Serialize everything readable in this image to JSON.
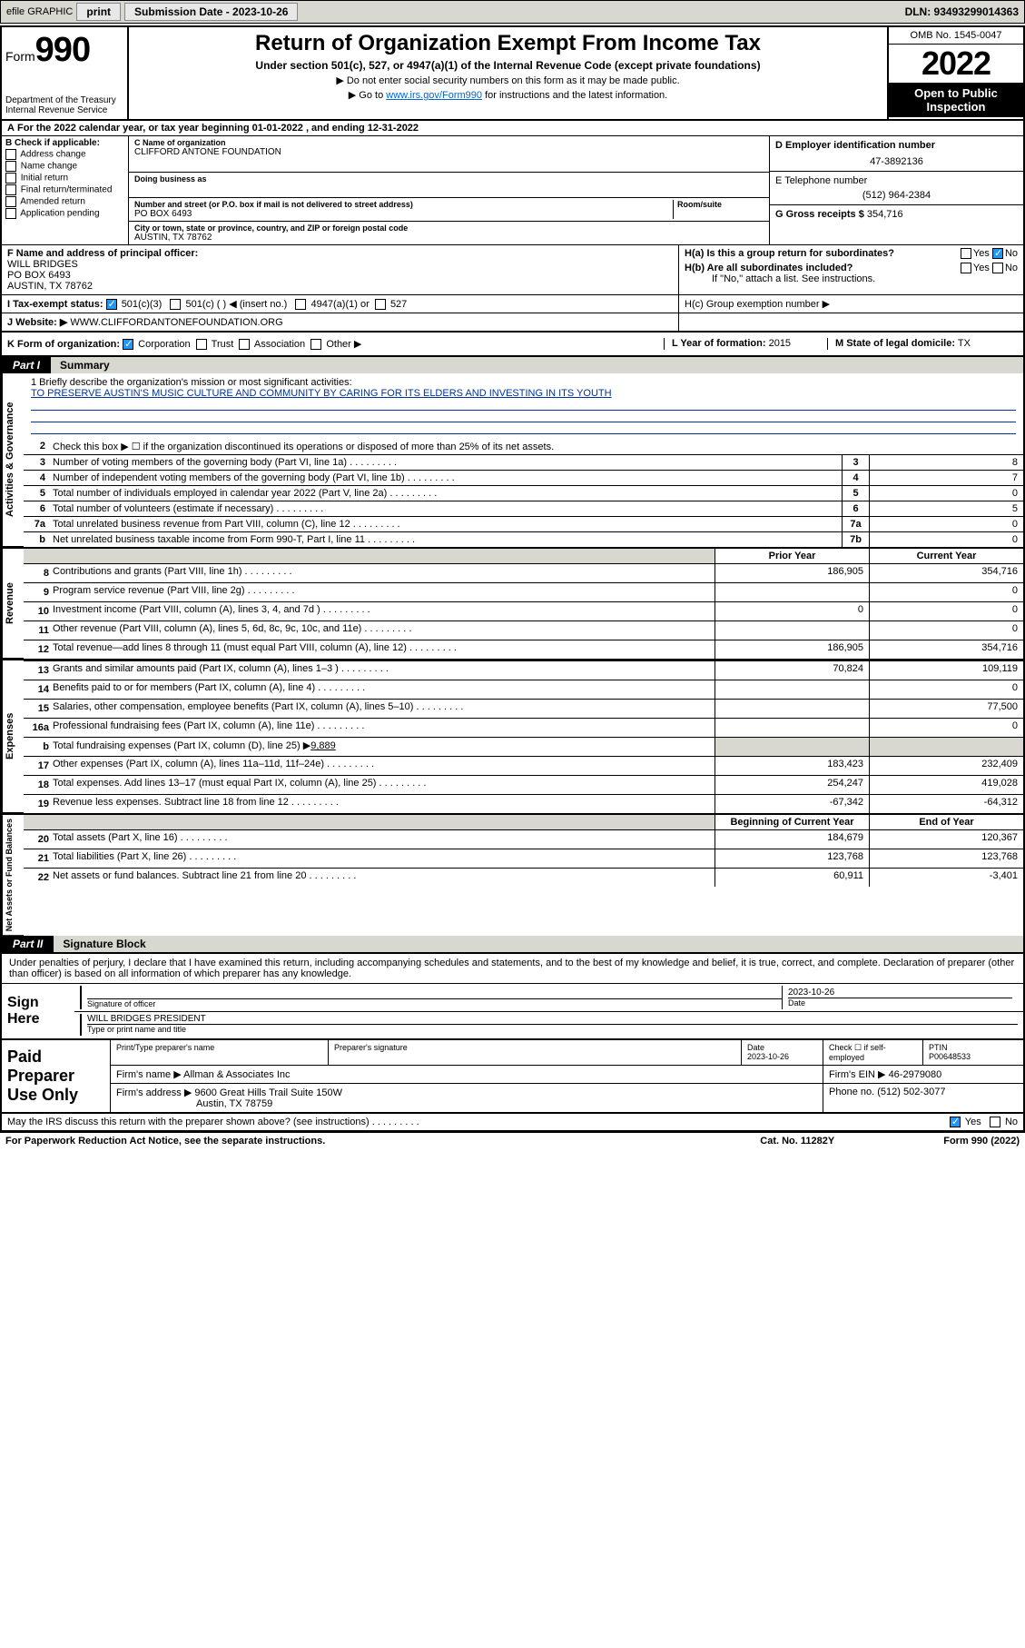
{
  "topbar": {
    "efile": "efile GRAPHIC",
    "print": "print",
    "submission_label": "Submission Date - 2023-10-26",
    "dln": "DLN: 93493299014363"
  },
  "header": {
    "form_word": "Form",
    "form_num": "990",
    "dept": "Department of the Treasury",
    "irs": "Internal Revenue Service",
    "title": "Return of Organization Exempt From Income Tax",
    "subtitle": "Under section 501(c), 527, or 4947(a)(1) of the Internal Revenue Code (except private foundations)",
    "note1": "▶ Do not enter social security numbers on this form as it may be made public.",
    "note2_pre": "▶ Go to ",
    "note2_link": "www.irs.gov/Form990",
    "note2_post": " for instructions and the latest information.",
    "omb": "OMB No. 1545-0047",
    "year": "2022",
    "open": "Open to Public Inspection"
  },
  "cal_year": "For the 2022 calendar year, or tax year beginning 01-01-2022   , and ending 12-31-2022",
  "sectionB": {
    "label": "B Check if applicable:",
    "opts": [
      "Address change",
      "Name change",
      "Initial return",
      "Final return/terminated",
      "Amended return",
      "Application pending"
    ]
  },
  "org": {
    "c_label": "C Name of organization",
    "name": "CLIFFORD ANTONE FOUNDATION",
    "dba_label": "Doing business as",
    "addr_label": "Number and street (or P.O. box if mail is not delivered to street address)",
    "room_label": "Room/suite",
    "addr": "PO BOX 6493",
    "city_label": "City or town, state or province, country, and ZIP or foreign postal code",
    "city": "AUSTIN, TX  78762"
  },
  "right": {
    "d_label": "D Employer identification number",
    "ein": "47-3892136",
    "e_label": "E Telephone number",
    "phone": "(512) 964-2384",
    "g_label": "G Gross receipts $",
    "gross": "354,716"
  },
  "f": {
    "label": "F Name and address of principal officer:",
    "name": "WILL BRIDGES",
    "addr": "PO BOX 6493",
    "city": "AUSTIN, TX  78762"
  },
  "h": {
    "a": "H(a)  Is this a group return for subordinates?",
    "b": "H(b)  Are all subordinates included?",
    "b_note": "If \"No,\" attach a list. See instructions.",
    "c": "H(c)  Group exemption number ▶",
    "yes": "Yes",
    "no": "No"
  },
  "i": {
    "label": "I     Tax-exempt status:",
    "opt1": "501(c)(3)",
    "opt2": "501(c) (  ) ◀ (insert no.)",
    "opt3": "4947(a)(1) or",
    "opt4": "527"
  },
  "j": {
    "label": "J    Website: ▶",
    "val": "WWW.CLIFFORDANTONEFOUNDATION.ORG"
  },
  "k": {
    "label": "K Form of organization:",
    "opts": [
      "Corporation",
      "Trust",
      "Association",
      "Other ▶"
    ],
    "l_label": "L Year of formation:",
    "l_val": "2015",
    "m_label": "M State of legal domicile:",
    "m_val": "TX"
  },
  "part1": {
    "num": "Part I",
    "title": "Summary"
  },
  "mission": {
    "q": "1   Briefly describe the organization's mission or most significant activities:",
    "text": "TO PRESERVE AUSTIN'S MUSIC CULTURE AND COMMUNITY BY CARING FOR ITS ELDERS AND INVESTING IN ITS YOUTH"
  },
  "line2": "Check this box ▶ ☐  if the organization discontinued its operations or disposed of more than 25% of its net assets.",
  "gov_lines": [
    {
      "n": "3",
      "d": "Number of voting members of the governing body (Part VI, line 1a)",
      "box": "3",
      "v": "8"
    },
    {
      "n": "4",
      "d": "Number of independent voting members of the governing body (Part VI, line 1b)",
      "box": "4",
      "v": "7"
    },
    {
      "n": "5",
      "d": "Total number of individuals employed in calendar year 2022 (Part V, line 2a)",
      "box": "5",
      "v": "0"
    },
    {
      "n": "6",
      "d": "Total number of volunteers (estimate if necessary)",
      "box": "6",
      "v": "5"
    },
    {
      "n": "7a",
      "d": "Total unrelated business revenue from Part VIII, column (C), line 12",
      "box": "7a",
      "v": "0"
    },
    {
      "n": "b",
      "d": "Net unrelated business taxable income from Form 990-T, Part I, line 11",
      "box": "7b",
      "v": "0"
    }
  ],
  "col_hdrs": {
    "prior": "Prior Year",
    "curr": "Current Year"
  },
  "revenue": [
    {
      "n": "8",
      "d": "Contributions and grants (Part VIII, line 1h)",
      "p": "186,905",
      "c": "354,716"
    },
    {
      "n": "9",
      "d": "Program service revenue (Part VIII, line 2g)",
      "p": "",
      "c": "0"
    },
    {
      "n": "10",
      "d": "Investment income (Part VIII, column (A), lines 3, 4, and 7d )",
      "p": "0",
      "c": "0"
    },
    {
      "n": "11",
      "d": "Other revenue (Part VIII, column (A), lines 5, 6d, 8c, 9c, 10c, and 11e)",
      "p": "",
      "c": "0"
    },
    {
      "n": "12",
      "d": "Total revenue—add lines 8 through 11 (must equal Part VIII, column (A), line 12)",
      "p": "186,905",
      "c": "354,716"
    }
  ],
  "expenses": [
    {
      "n": "13",
      "d": "Grants and similar amounts paid (Part IX, column (A), lines 1–3 )",
      "p": "70,824",
      "c": "109,119"
    },
    {
      "n": "14",
      "d": "Benefits paid to or for members (Part IX, column (A), line 4)",
      "p": "",
      "c": "0"
    },
    {
      "n": "15",
      "d": "Salaries, other compensation, employee benefits (Part IX, column (A), lines 5–10)",
      "p": "",
      "c": "77,500"
    },
    {
      "n": "16a",
      "d": "Professional fundraising fees (Part IX, column (A), line 11e)",
      "p": "",
      "c": "0"
    }
  ],
  "exp16b": {
    "n": "b",
    "d": "Total fundraising expenses (Part IX, column (D), line 25) ▶",
    "v": "9,889"
  },
  "expenses2": [
    {
      "n": "17",
      "d": "Other expenses (Part IX, column (A), lines 11a–11d, 11f–24e)",
      "p": "183,423",
      "c": "232,409"
    },
    {
      "n": "18",
      "d": "Total expenses. Add lines 13–17 (must equal Part IX, column (A), line 25)",
      "p": "254,247",
      "c": "419,028"
    },
    {
      "n": "19",
      "d": "Revenue less expenses. Subtract line 18 from line 12",
      "p": "-67,342",
      "c": "-64,312"
    }
  ],
  "net_hdrs": {
    "beg": "Beginning of Current Year",
    "end": "End of Year"
  },
  "net": [
    {
      "n": "20",
      "d": "Total assets (Part X, line 16)",
      "p": "184,679",
      "c": "120,367"
    },
    {
      "n": "21",
      "d": "Total liabilities (Part X, line 26)",
      "p": "123,768",
      "c": "123,768"
    },
    {
      "n": "22",
      "d": "Net assets or fund balances. Subtract line 21 from line 20",
      "p": "60,911",
      "c": "-3,401"
    }
  ],
  "part2": {
    "num": "Part II",
    "title": "Signature Block"
  },
  "sig_text": "Under penalties of perjury, I declare that I have examined this return, including accompanying schedules and statements, and to the best of my knowledge and belief, it is true, correct, and complete. Declaration of preparer (other than officer) is based on all information of which preparer has any knowledge.",
  "sign": {
    "here": "Sign Here",
    "officer_lbl": "Signature of officer",
    "date_lbl": "Date",
    "date": "2023-10-26",
    "name": "WILL BRIDGES  PRESIDENT",
    "name_lbl": "Type or print name and title"
  },
  "paid": {
    "title": "Paid Preparer Use Only",
    "h1": "Print/Type preparer's name",
    "h2": "Preparer's signature",
    "h3": "Date",
    "date": "2023-10-26",
    "h4": "Check ☐ if self-employed",
    "h5": "PTIN",
    "ptin": "P00648533",
    "firm_lbl": "Firm's name    ▶",
    "firm": "Allman & Associates Inc",
    "ein_lbl": "Firm's EIN ▶",
    "ein": "46-2979080",
    "addr_lbl": "Firm's address ▶",
    "addr1": "9600 Great Hills Trail Suite 150W",
    "addr2": "Austin, TX  78759",
    "phone_lbl": "Phone no.",
    "phone": "(512) 502-3077"
  },
  "footer": {
    "q": "May the IRS discuss this return with the preparer shown above? (see instructions)",
    "yes": "Yes",
    "no": "No",
    "pra": "For Paperwork Reduction Act Notice, see the separate instructions.",
    "cat": "Cat. No. 11282Y",
    "form": "Form 990 (2022)"
  },
  "side_labels": {
    "gov": "Activities & Governance",
    "rev": "Revenue",
    "exp": "Expenses",
    "net": "Net Assets or Fund Balances"
  }
}
